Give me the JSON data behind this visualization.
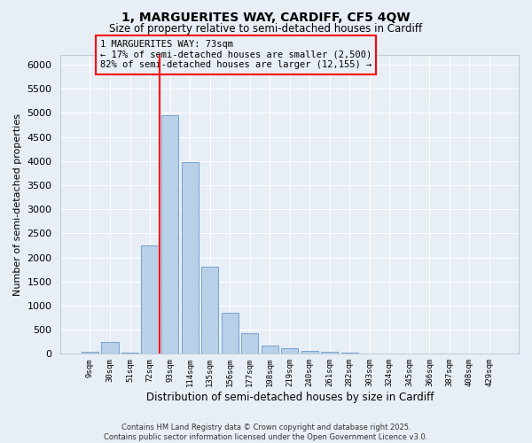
{
  "title_line1": "1, MARGUERITES WAY, CARDIFF, CF5 4QW",
  "title_line2": "Size of property relative to semi-detached houses in Cardiff",
  "xlabel": "Distribution of semi-detached houses by size in Cardiff",
  "ylabel": "Number of semi-detached properties",
  "bar_labels": [
    "9sqm",
    "30sqm",
    "51sqm",
    "72sqm",
    "93sqm",
    "114sqm",
    "135sqm",
    "156sqm",
    "177sqm",
    "198sqm",
    "219sqm",
    "240sqm",
    "261sqm",
    "282sqm",
    "303sqm",
    "324sqm",
    "345sqm",
    "366sqm",
    "387sqm",
    "408sqm",
    "429sqm"
  ],
  "bar_values": [
    50,
    250,
    30,
    2250,
    4950,
    3980,
    1800,
    850,
    420,
    170,
    110,
    60,
    40,
    25,
    15,
    10,
    5,
    3,
    2,
    1,
    0
  ],
  "bar_color": "#b8d0e8",
  "bar_edgecolor": "#6699cc",
  "vline_x_index": 3,
  "vline_color": "red",
  "property_label": "1 MARGUERITES WAY: 73sqm",
  "smaller_pct": 17,
  "smaller_count": "2,500",
  "larger_pct": 82,
  "larger_count": "12,155",
  "annotation_box_color": "red",
  "ylim": [
    0,
    6200
  ],
  "yticks": [
    0,
    500,
    1000,
    1500,
    2000,
    2500,
    3000,
    3500,
    4000,
    4500,
    5000,
    5500,
    6000
  ],
  "background_color": "#e8eef6",
  "grid_color": "#d0d8e8",
  "footer_line1": "Contains HM Land Registry data © Crown copyright and database right 2025.",
  "footer_line2": "Contains public sector information licensed under the Open Government Licence v3.0."
}
